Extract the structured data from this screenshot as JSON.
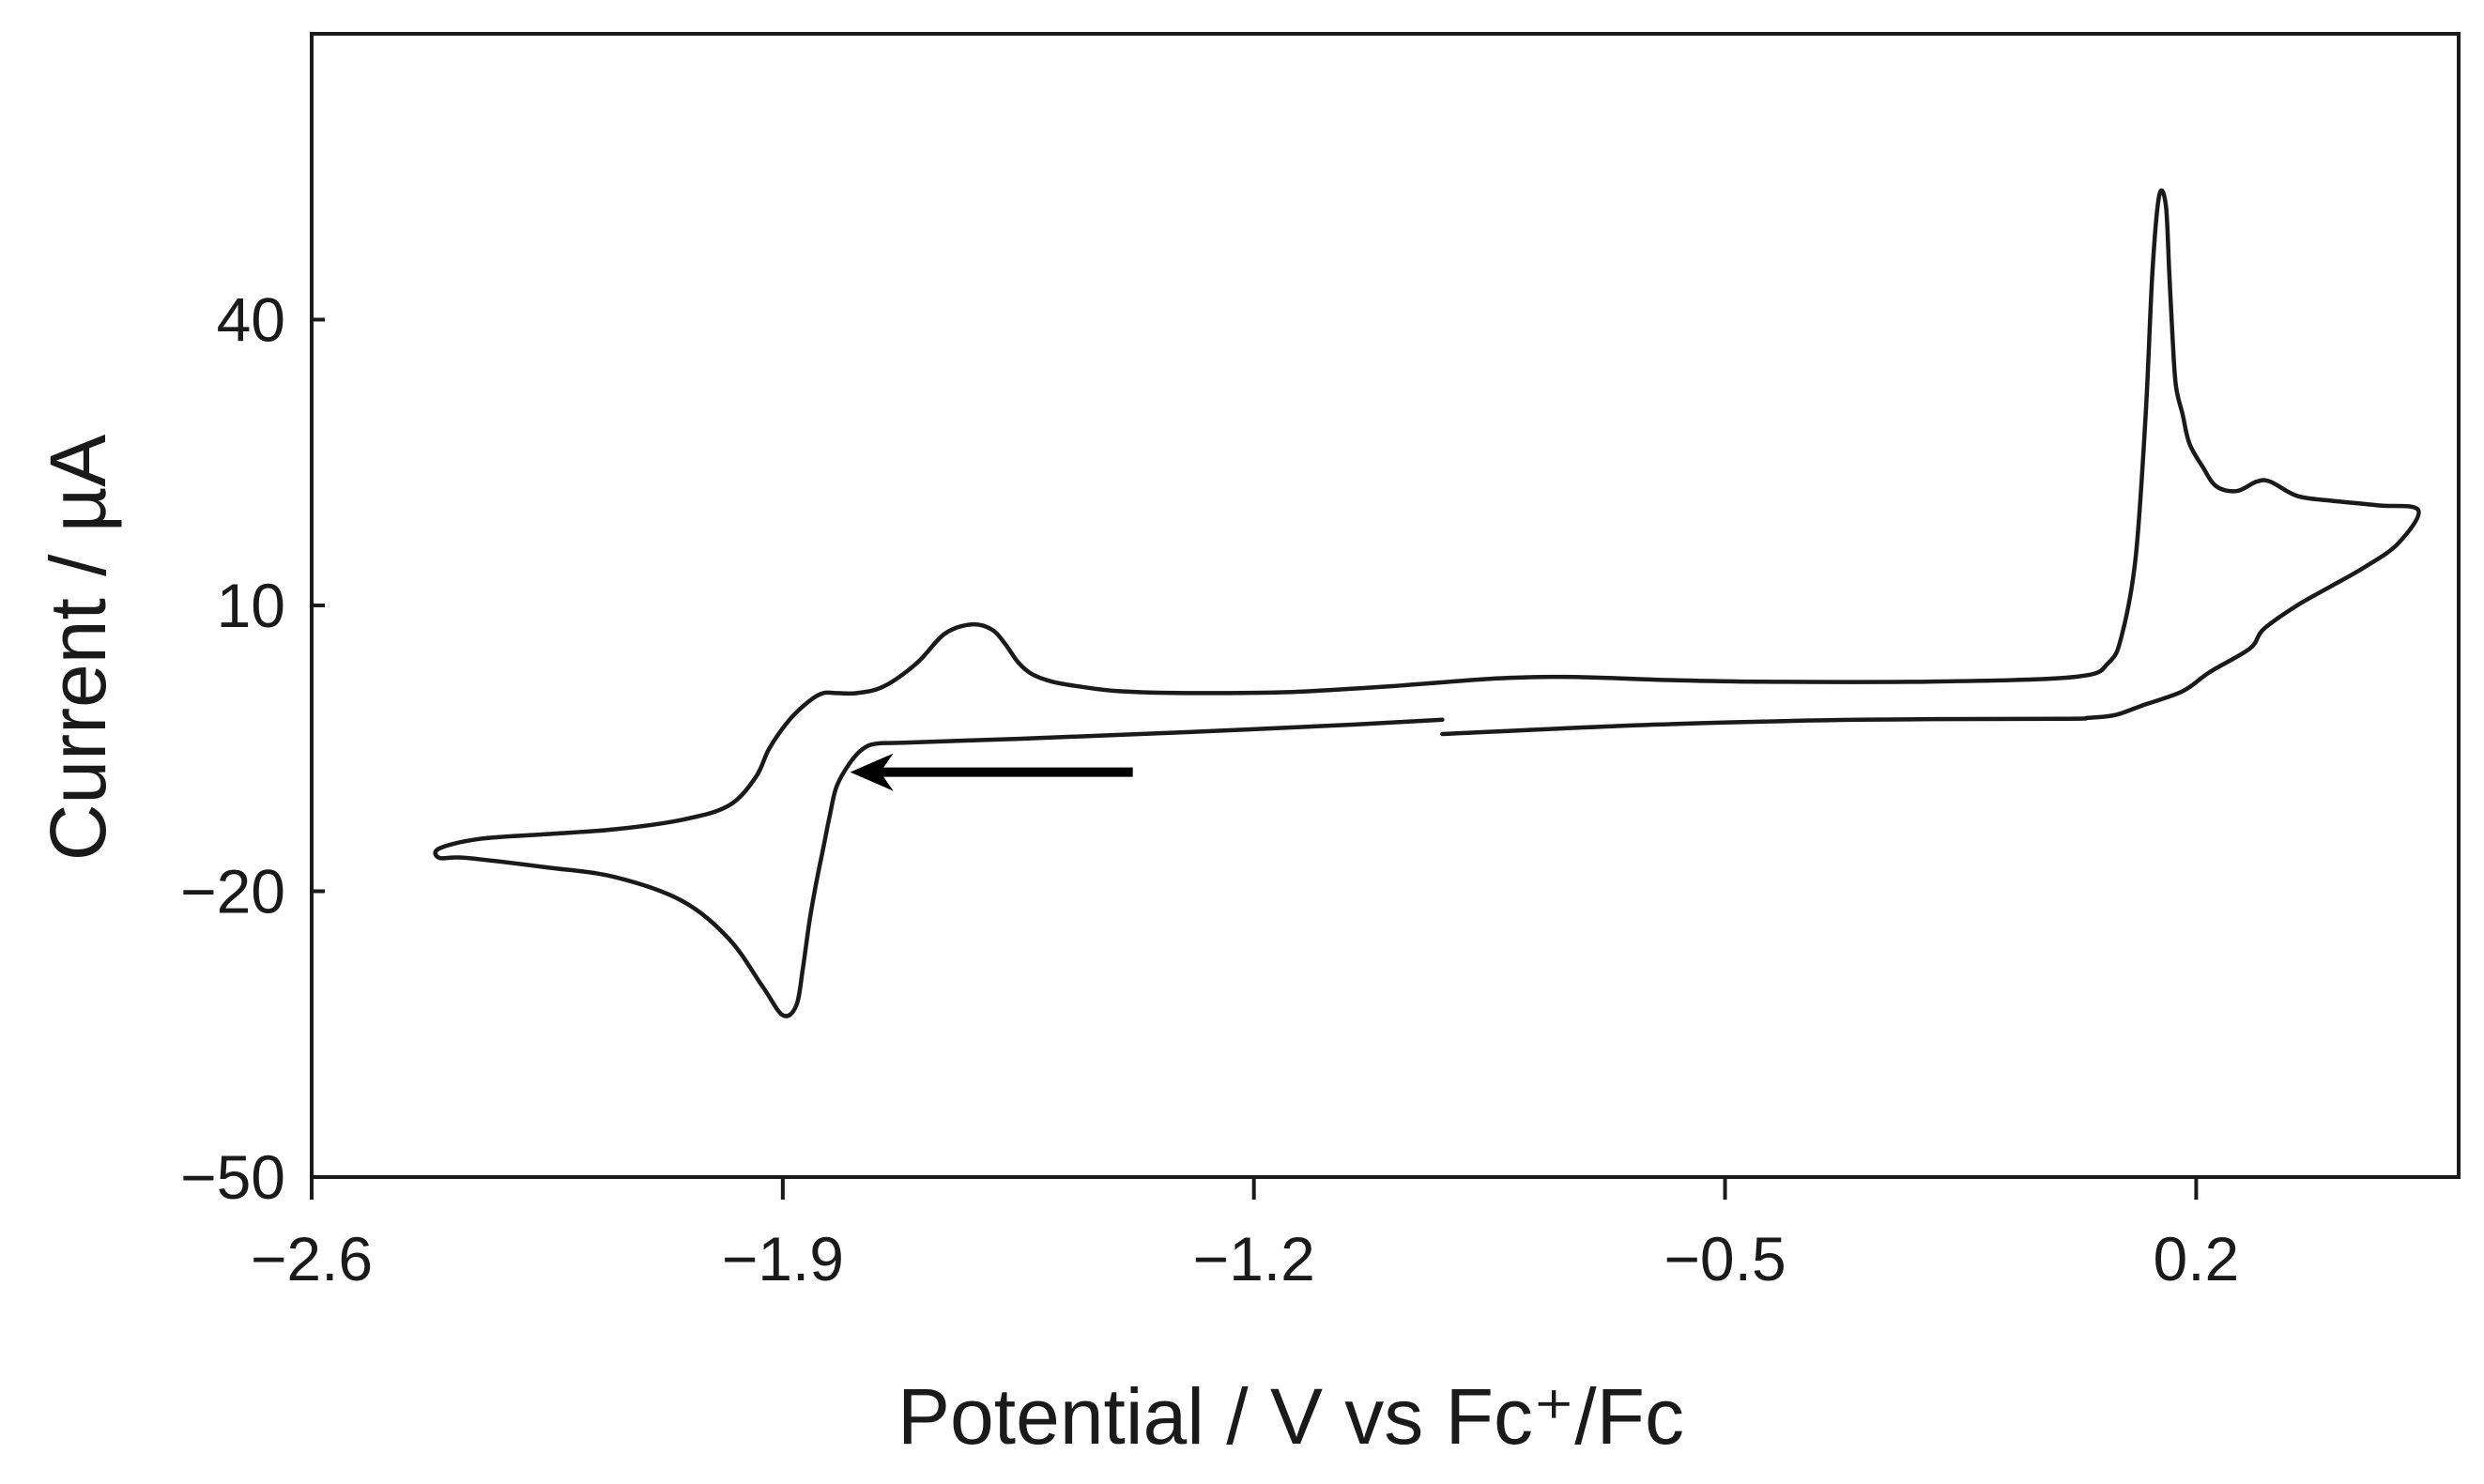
{
  "chart_data": {
    "type": "line",
    "title": "",
    "xlabel": "Potential / V vs Fc⁺/Fc",
    "ylabel": "Current / µA",
    "xlim": [
      -2.6,
      0.59
    ],
    "ylim": [
      -50,
      70
    ],
    "xticks": [
      -2.6,
      -1.9,
      -1.2,
      -0.5,
      0.2
    ],
    "xtick_labels": [
      "−2.6",
      "−1.9",
      "−1.2",
      "−0.5",
      "0.2"
    ],
    "yticks": [
      -50,
      -20,
      10,
      40
    ],
    "ytick_labels": [
      "−50",
      "−20",
      "10",
      "40"
    ],
    "grid": false,
    "legend": "none",
    "line_color": "#1a1a1a",
    "annotations": [
      {
        "type": "arrow",
        "direction": "left",
        "from": [
          -1.38,
          -7.5
        ],
        "to": [
          -1.8,
          -7.5
        ]
      }
    ],
    "series": [
      {
        "values_note": "",
        "x": [
          -0.92,
          -1.05,
          -1.3,
          -1.55,
          -1.72,
          -1.76,
          -1.78,
          -1.8,
          -1.82,
          -1.83,
          -1.84,
          -1.85,
          -1.86,
          -1.87,
          -1.88,
          -1.9,
          -1.93,
          -1.98,
          -2.05,
          -2.15,
          -2.25,
          -2.37,
          -2.41,
          -2.41,
          -2.35,
          -2.25,
          -2.15,
          -2.05,
          -1.98,
          -1.94,
          -1.92,
          -1.89,
          -1.86,
          -1.84,
          -1.82,
          -1.79,
          -1.75,
          -1.7,
          -1.66,
          -1.62,
          -1.59,
          -1.57,
          -1.55,
          -1.53,
          -1.5,
          -1.46,
          -1.4,
          -1.3,
          -1.15,
          -1.0,
          -0.85,
          -0.75,
          -0.68,
          -0.6,
          -0.45,
          -0.2,
          0.02,
          0.07,
          0.09,
          0.11,
          0.125,
          0.135,
          0.145,
          0.155,
          0.16,
          0.165,
          0.17,
          0.18,
          0.19,
          0.21,
          0.23,
          0.26,
          0.29,
          0.31,
          0.35,
          0.4,
          0.47,
          0.53,
          0.5,
          0.45,
          0.4,
          0.35,
          0.3,
          0.28,
          0.22,
          0.18,
          0.12,
          0.08,
          0.04,
          0.0,
          -0.3,
          -0.6,
          -0.92
        ],
        "y": [
          -2.0,
          -2.5,
          -3.3,
          -4.0,
          -4.4,
          -4.5,
          -5.0,
          -6.5,
          -9.0,
          -12.0,
          -15.5,
          -19.0,
          -23.0,
          -28.0,
          -32.0,
          -33.0,
          -30.0,
          -25.0,
          -21.0,
          -18.5,
          -17.5,
          -16.5,
          -16.5,
          -15.5,
          -14.5,
          -14.0,
          -13.5,
          -12.5,
          -11.0,
          -8.0,
          -5.0,
          -2.0,
          0.0,
          0.8,
          0.8,
          0.8,
          1.5,
          4.0,
          7.0,
          8.0,
          7.5,
          6.0,
          4.0,
          2.8,
          2.0,
          1.5,
          1.0,
          0.8,
          0.9,
          1.5,
          2.3,
          2.5,
          2.4,
          2.2,
          2.0,
          2.0,
          2.5,
          4.0,
          7.0,
          15.0,
          30.0,
          45.0,
          53.0,
          52.0,
          45.0,
          38.0,
          33.0,
          30.0,
          27.0,
          24.5,
          22.5,
          22.0,
          23.0,
          23.0,
          21.5,
          21.0,
          20.5,
          20.0,
          16.5,
          14.0,
          12.0,
          10.0,
          7.5,
          5.5,
          3.0,
          1.0,
          -0.5,
          -1.5,
          -1.8,
          -1.9,
          -2.0,
          -2.5,
          -3.5
        ]
      }
    ]
  }
}
